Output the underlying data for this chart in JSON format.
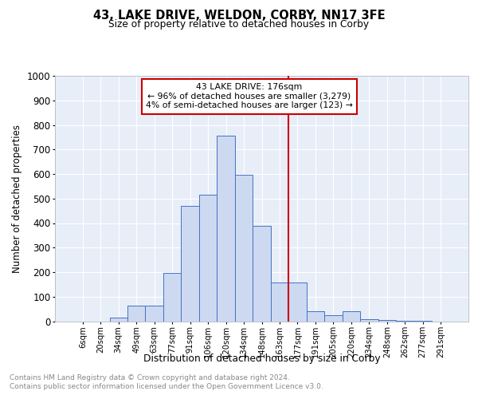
{
  "title": "43, LAKE DRIVE, WELDON, CORBY, NN17 3FE",
  "subtitle": "Size of property relative to detached houses in Corby",
  "xlabel": "Distribution of detached houses by size in Corby",
  "ylabel": "Number of detached properties",
  "categories": [
    "6sqm",
    "20sqm",
    "34sqm",
    "49sqm",
    "63sqm",
    "77sqm",
    "91sqm",
    "106sqm",
    "120sqm",
    "134sqm",
    "148sqm",
    "163sqm",
    "177sqm",
    "191sqm",
    "205sqm",
    "220sqm",
    "234sqm",
    "248sqm",
    "262sqm",
    "277sqm",
    "291sqm"
  ],
  "values": [
    0,
    0,
    15,
    65,
    65,
    197,
    470,
    515,
    757,
    597,
    390,
    158,
    158,
    40,
    25,
    42,
    9,
    5,
    3,
    2,
    0
  ],
  "bar_color": "#ccd9f0",
  "bar_edge_color": "#4472c4",
  "vline_color": "#cc0000",
  "annotation_title": "43 LAKE DRIVE: 176sqm",
  "annotation_line1": "← 96% of detached houses are smaller (3,279)",
  "annotation_line2": "4% of semi-detached houses are larger (123) →",
  "annotation_box_color": "#cc0000",
  "ylim": [
    0,
    1000
  ],
  "yticks": [
    0,
    100,
    200,
    300,
    400,
    500,
    600,
    700,
    800,
    900,
    1000
  ],
  "footer1": "Contains HM Land Registry data © Crown copyright and database right 2024.",
  "footer2": "Contains public sector information licensed under the Open Government Licence v3.0.",
  "plot_bg_color": "#e8eef8"
}
